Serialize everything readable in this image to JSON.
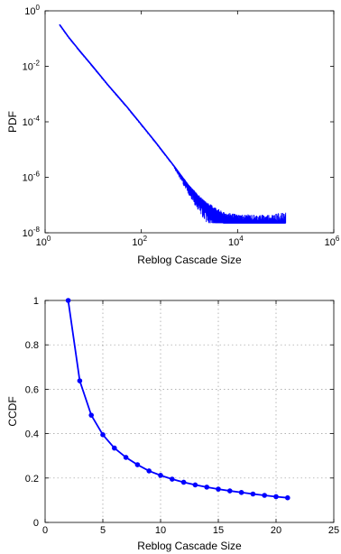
{
  "chart_data": [
    {
      "type": "scatter",
      "xlabel": "Reblog Cascade Size",
      "ylabel": "PDF",
      "xscale": "log",
      "yscale": "log",
      "xlim": [
        1,
        1000000
      ],
      "ylim": [
        1e-08,
        1
      ],
      "x_ticks": [
        {
          "base": "10",
          "exp": "0"
        },
        {
          "base": "10",
          "exp": "2"
        },
        {
          "base": "10",
          "exp": "4"
        },
        {
          "base": "10",
          "exp": "6"
        }
      ],
      "y_ticks": [
        {
          "base": "10",
          "exp": "-8"
        },
        {
          "base": "10",
          "exp": "-6"
        },
        {
          "base": "10",
          "exp": "-4"
        },
        {
          "base": "10",
          "exp": "-2"
        },
        {
          "base": "10",
          "exp": "0"
        }
      ],
      "grid": false,
      "color": "#0000ff",
      "series": [
        {
          "x": [
            2,
            3,
            5,
            10,
            20,
            50,
            100,
            200,
            500,
            1000,
            2000,
            5000,
            10000,
            30000,
            100000
          ],
          "y": [
            0.32,
            0.12,
            0.04,
            0.0095,
            0.0022,
            0.00035,
            8e-05,
            1.8e-05,
            2.3e-06,
            4.5e-07,
            1.2e-07,
            4e-08,
            3e-08,
            2.5e-08,
            2.5e-08
          ]
        }
      ]
    },
    {
      "type": "line",
      "xlabel": "Reblog Cascade Size",
      "ylabel": "CCDF",
      "xlim": [
        0,
        25
      ],
      "ylim": [
        0,
        1
      ],
      "x_ticks": [
        "0",
        "5",
        "10",
        "15",
        "20",
        "25"
      ],
      "y_ticks": [
        "0",
        "0.2",
        "0.4",
        "0.6",
        "0.8",
        "1"
      ],
      "grid": true,
      "color": "#0000ff",
      "marker": "circle",
      "series": [
        {
          "x": [
            2,
            3,
            4,
            5,
            6,
            7,
            8,
            9,
            10,
            11,
            12,
            13,
            14,
            15,
            16,
            17,
            18,
            19,
            20,
            21
          ],
          "y": [
            1.0,
            0.638,
            0.483,
            0.395,
            0.335,
            0.293,
            0.26,
            0.232,
            0.212,
            0.195,
            0.181,
            0.169,
            0.159,
            0.15,
            0.142,
            0.135,
            0.128,
            0.122,
            0.116,
            0.111
          ]
        }
      ]
    }
  ]
}
